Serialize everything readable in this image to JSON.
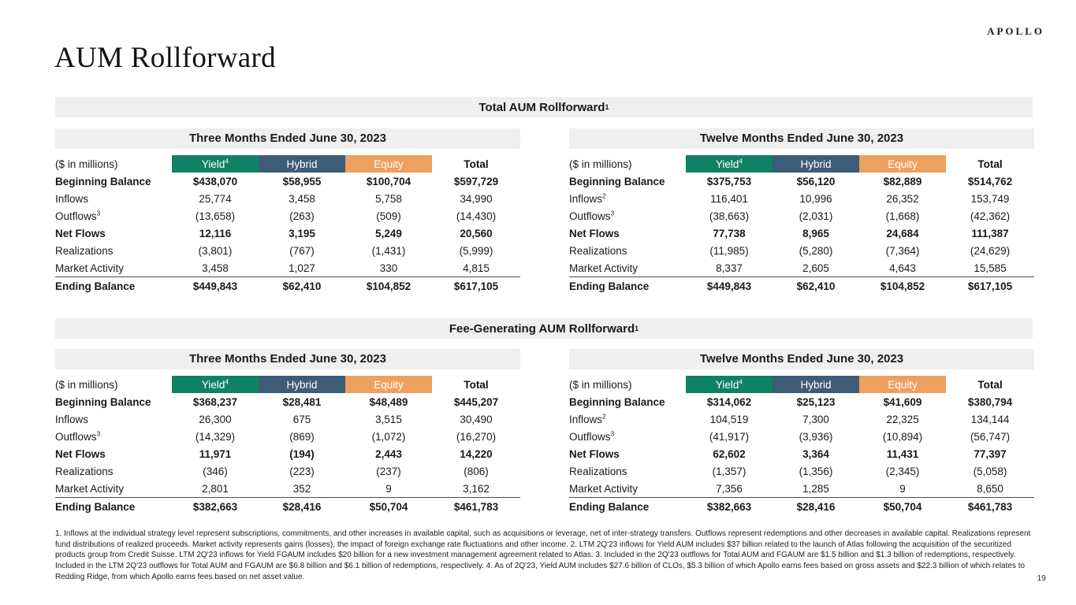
{
  "brand": {
    "logo": "APOLLO"
  },
  "page": {
    "title": "AUM Rollforward",
    "number": "19"
  },
  "colors": {
    "yield": "#108264",
    "hybrid": "#3e5b77",
    "equity": "#eda05f",
    "band": "#efefef"
  },
  "sections": [
    {
      "title": "Total AUM Rollforward",
      "title_sup": "1",
      "tables": [
        {
          "period": "Three Months Ended June 30, 2023",
          "unit_label": "($ in millions)",
          "columns": [
            {
              "label": "Yield",
              "sup": "4"
            },
            {
              "label": "Hybrid"
            },
            {
              "label": "Equity"
            },
            {
              "label": "Total"
            }
          ],
          "rows": [
            {
              "label": "Beginning Balance",
              "bold": true,
              "values": [
                "$438,070",
                "$58,955",
                "$100,704",
                "$597,729"
              ]
            },
            {
              "label": "Inflows",
              "values": [
                "25,774",
                "3,458",
                "5,758",
                "34,990"
              ]
            },
            {
              "label": "Outflows",
              "sup": "3",
              "values": [
                "(13,658)",
                "(263)",
                "(509)",
                "(14,430)"
              ]
            },
            {
              "label": "Net Flows",
              "bold": true,
              "values": [
                "12,116",
                "3,195",
                "5,249",
                "20,560"
              ]
            },
            {
              "label": "Realizations",
              "values": [
                "(3,801)",
                "(767)",
                "(1,431)",
                "(5,999)"
              ]
            },
            {
              "label": "Market Activity",
              "values": [
                "3,458",
                "1,027",
                "330",
                "4,815"
              ]
            },
            {
              "label": "Ending Balance",
              "bold": true,
              "topline": true,
              "values": [
                "$449,843",
                "$62,410",
                "$104,852",
                "$617,105"
              ]
            }
          ]
        },
        {
          "period": "Twelve Months Ended June 30, 2023",
          "unit_label": "($ in millions)",
          "columns": [
            {
              "label": "Yield",
              "sup": "4"
            },
            {
              "label": "Hybrid"
            },
            {
              "label": "Equity"
            },
            {
              "label": "Total"
            }
          ],
          "rows": [
            {
              "label": "Beginning Balance",
              "bold": true,
              "values": [
                "$375,753",
                "$56,120",
                "$82,889",
                "$514,762"
              ]
            },
            {
              "label": "Inflows",
              "sup": "2",
              "values": [
                "116,401",
                "10,996",
                "26,352",
                "153,749"
              ]
            },
            {
              "label": "Outflows",
              "sup": "3",
              "values": [
                "(38,663)",
                "(2,031)",
                "(1,668)",
                "(42,362)"
              ]
            },
            {
              "label": "Net Flows",
              "bold": true,
              "values": [
                "77,738",
                "8,965",
                "24,684",
                "111,387"
              ]
            },
            {
              "label": "Realizations",
              "values": [
                "(11,985)",
                "(5,280)",
                "(7,364)",
                "(24,629)"
              ]
            },
            {
              "label": "Market Activity",
              "values": [
                "8,337",
                "2,605",
                "4,643",
                "15,585"
              ]
            },
            {
              "label": "Ending Balance",
              "bold": true,
              "topline": true,
              "values": [
                "$449,843",
                "$62,410",
                "$104,852",
                "$617,105"
              ]
            }
          ]
        }
      ]
    },
    {
      "title": "Fee-Generating AUM Rollforward",
      "title_sup": "1",
      "tables": [
        {
          "period": "Three Months Ended June 30, 2023",
          "unit_label": "($ in millions)",
          "columns": [
            {
              "label": "Yield",
              "sup": "4"
            },
            {
              "label": "Hybrid"
            },
            {
              "label": "Equity"
            },
            {
              "label": "Total"
            }
          ],
          "rows": [
            {
              "label": "Beginning Balance",
              "bold": true,
              "values": [
                "$368,237",
                "$28,481",
                "$48,489",
                "$445,207"
              ]
            },
            {
              "label": "Inflows",
              "values": [
                "26,300",
                "675",
                "3,515",
                "30,490"
              ]
            },
            {
              "label": "Outflows",
              "sup": "3",
              "values": [
                "(14,329)",
                "(869)",
                "(1,072)",
                "(16,270)"
              ]
            },
            {
              "label": "Net Flows",
              "bold": true,
              "values": [
                "11,971",
                "(194)",
                "2,443",
                "14,220"
              ]
            },
            {
              "label": "Realizations",
              "values": [
                "(346)",
                "(223)",
                "(237)",
                "(806)"
              ]
            },
            {
              "label": "Market Activity",
              "values": [
                "2,801",
                "352",
                "9",
                "3,162"
              ]
            },
            {
              "label": "Ending Balance",
              "bold": true,
              "topline": true,
              "values": [
                "$382,663",
                "$28,416",
                "$50,704",
                "$461,783"
              ]
            }
          ]
        },
        {
          "period": "Twelve Months Ended June 30, 2023",
          "unit_label": "($ in millions)",
          "columns": [
            {
              "label": "Yield",
              "sup": "4"
            },
            {
              "label": "Hybrid"
            },
            {
              "label": "Equity"
            },
            {
              "label": "Total"
            }
          ],
          "rows": [
            {
              "label": "Beginning Balance",
              "bold": true,
              "values": [
                "$314,062",
                "$25,123",
                "$41,609",
                "$380,794"
              ]
            },
            {
              "label": "Inflows",
              "sup": "2",
              "values": [
                "104,519",
                "7,300",
                "22,325",
                "134,144"
              ]
            },
            {
              "label": "Outflows",
              "sup": "3",
              "values": [
                "(41,917)",
                "(3,936)",
                "(10,894)",
                "(56,747)"
              ]
            },
            {
              "label": "Net Flows",
              "bold": true,
              "values": [
                "62,602",
                "3,364",
                "11,431",
                "77,397"
              ]
            },
            {
              "label": "Realizations",
              "values": [
                "(1,357)",
                "(1,356)",
                "(2,345)",
                "(5,058)"
              ]
            },
            {
              "label": "Market Activity",
              "values": [
                "7,356",
                "1,285",
                "9",
                "8,650"
              ]
            },
            {
              "label": "Ending Balance",
              "bold": true,
              "topline": true,
              "values": [
                "$382,663",
                "$28,416",
                "$50,704",
                "$461,783"
              ]
            }
          ]
        }
      ]
    }
  ],
  "footnotes": "1. Inflows at the individual strategy level represent subscriptions, commitments, and other increases in available capital, such as acquisitions or leverage, net of inter-strategy transfers. Outflows represent redemptions and other decreases in available capital. Realizations represent fund distributions of realized proceeds. Market activity represents gains (losses), the impact of foreign exchange rate fluctuations and other income. 2. LTM 2Q'23 inflows for Yield AUM includes $37 billion related to the launch of Atlas following the acquisition of the securitized products group from Credit Suisse. LTM 2Q'23 inflows for Yield FGAUM includes $20 billion for a new investment management agreement related to Atlas. 3. Included in the 2Q'23 outflows for Total AUM and FGAUM are $1.5 billion and $1.3 billion of redemptions, respectively. Included in the LTM 2Q'23 outflows for Total AUM and FGAUM are $6.8 billion and $6.1 billion of redemptions, respectively. 4. As of 2Q'23, Yield AUM includes $27.6 billion of CLOs, $5.3 billion of which Apollo earns fees based on gross assets and $22.3 billion of which relates to Redding Ridge, from which Apollo earns fees based on net asset value."
}
